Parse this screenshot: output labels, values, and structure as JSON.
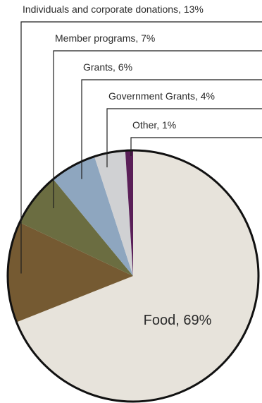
{
  "chart_data": {
    "type": "pie",
    "slices": [
      {
        "label": "Food, 69%",
        "value": 69,
        "color": "#e7e3db"
      },
      {
        "label": "Individuals and corporate donations, 13%",
        "value": 13,
        "color": "#755a32"
      },
      {
        "label": "Member programs, 7%",
        "value": 7,
        "color": "#6b6d41"
      },
      {
        "label": "Grants, 6%",
        "value": 6,
        "color": "#8ea6bf"
      },
      {
        "label": "Government Grants, 4%",
        "value": 4,
        "color": "#d0d1d3"
      },
      {
        "label": "Other, 1%",
        "value": 1,
        "color": "#5a1f58"
      }
    ]
  }
}
